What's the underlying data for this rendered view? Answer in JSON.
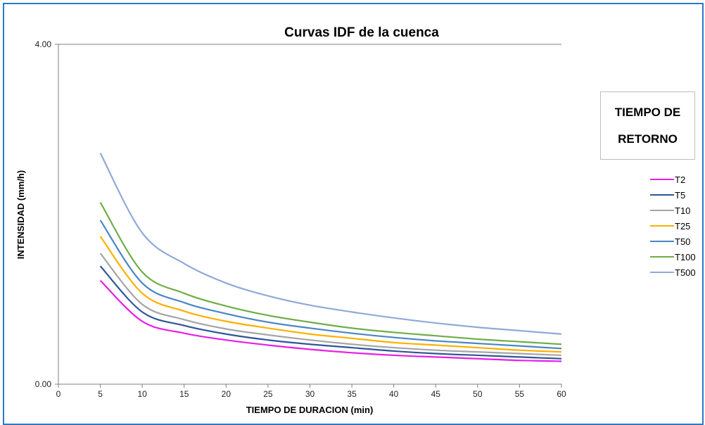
{
  "chart_data": {
    "type": "line",
    "title": "Curvas IDF de la cuenca",
    "xlabel": "TIEMPO DE DURACION  (min)",
    "ylabel": "INTENSIDAD  (mm/h)",
    "xlim": [
      0,
      60
    ],
    "ylim": [
      0,
      4
    ],
    "xticks": [
      "0",
      "5",
      "10",
      "15",
      "20",
      "25",
      "30",
      "35",
      "40",
      "45",
      "50",
      "55",
      "60"
    ],
    "yticks": [
      "0.00",
      "4.00"
    ],
    "grid": false,
    "legend_title": "TIEMPO DE RETORNO",
    "legend_position": "right",
    "x": [
      5,
      10,
      15,
      20,
      25,
      30,
      35,
      40,
      45,
      50,
      55,
      60
    ],
    "series": [
      {
        "name": "T2",
        "color": "#e81ee8",
        "values": [
          1.22,
          0.74,
          0.6,
          0.52,
          0.46,
          0.41,
          0.37,
          0.34,
          0.32,
          0.3,
          0.28,
          0.27
        ]
      },
      {
        "name": "T5",
        "color": "#2f5597",
        "values": [
          1.39,
          0.85,
          0.69,
          0.59,
          0.52,
          0.47,
          0.43,
          0.39,
          0.36,
          0.34,
          0.32,
          0.3
        ]
      },
      {
        "name": "T10",
        "color": "#a5a5a5",
        "values": [
          1.54,
          0.94,
          0.76,
          0.65,
          0.58,
          0.52,
          0.47,
          0.43,
          0.4,
          0.38,
          0.36,
          0.34
        ]
      },
      {
        "name": "T25",
        "color": "#ffb000",
        "values": [
          1.74,
          1.07,
          0.86,
          0.74,
          0.66,
          0.59,
          0.54,
          0.49,
          0.46,
          0.43,
          0.4,
          0.38
        ]
      },
      {
        "name": "T50",
        "color": "#4a85c6",
        "values": [
          1.93,
          1.19,
          0.96,
          0.83,
          0.73,
          0.66,
          0.6,
          0.55,
          0.51,
          0.48,
          0.45,
          0.42
        ]
      },
      {
        "name": "T100",
        "color": "#70ad47",
        "values": [
          2.14,
          1.32,
          1.07,
          0.92,
          0.81,
          0.73,
          0.66,
          0.61,
          0.57,
          0.53,
          0.5,
          0.47
        ]
      },
      {
        "name": "T500",
        "color": "#8eaad9",
        "values": [
          2.72,
          1.78,
          1.42,
          1.19,
          1.04,
          0.93,
          0.85,
          0.78,
          0.72,
          0.67,
          0.63,
          0.59
        ]
      }
    ]
  }
}
